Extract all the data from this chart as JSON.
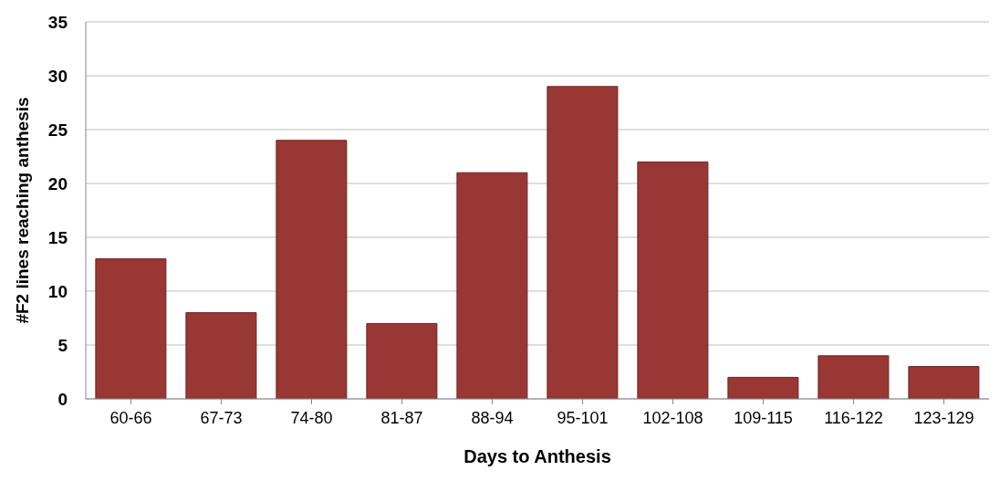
{
  "chart_data": {
    "type": "bar",
    "xlabel": "Days to Anthesis",
    "ylabel": "#F2 lines reaching anthesis",
    "categories": [
      "60-66",
      "67-73",
      "74-80",
      "81-87",
      "88-94",
      "95-101",
      "102-108",
      "109-115",
      "116-122",
      "123-129"
    ],
    "values": [
      13,
      8,
      24,
      7,
      21,
      29,
      22,
      2,
      4,
      3
    ],
    "color": "#993735",
    "ylim": [
      0,
      35
    ],
    "yticks": [
      0,
      5,
      10,
      15,
      20,
      25,
      30,
      35
    ],
    "grid": "y",
    "legend": false
  }
}
